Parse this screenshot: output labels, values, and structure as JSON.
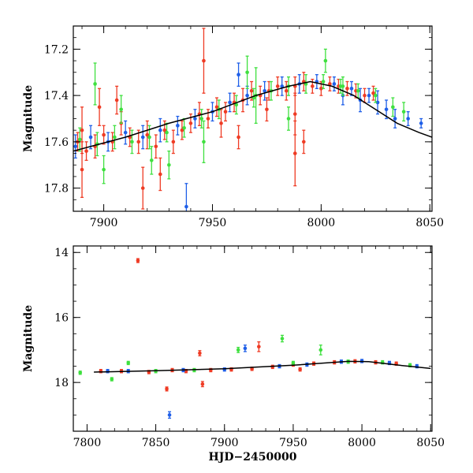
{
  "chart_data": [
    {
      "type": "scatter",
      "title": "",
      "xlabel": "",
      "ylabel": "Magnitude",
      "xlim": [
        7886,
        8051
      ],
      "ylim": [
        17.9,
        17.1
      ],
      "y_inverted": true,
      "grid": false,
      "x_ticks": [
        7900,
        7950,
        8000,
        8050
      ],
      "x_tick_labels": [
        "7900",
        "7950",
        "8000",
        "8050"
      ],
      "y_ticks": [
        17.2,
        17.4,
        17.6,
        17.8
      ],
      "y_tick_labels": [
        "17.2",
        "17.4",
        "17.6",
        "17.8"
      ],
      "series": [
        {
          "color": "#ef3b24",
          "points": [
            [
              7888,
              17.6,
              0.04
            ],
            [
              7892,
              17.64,
              0.04
            ],
            [
              7896,
              17.62,
              0.05
            ],
            [
              7900,
              17.57,
              0.04
            ],
            [
              7904,
              17.6,
              0.04
            ],
            [
              7908,
              17.52,
              0.05
            ],
            [
              7912,
              17.58,
              0.04
            ],
            [
              7916,
              17.6,
              0.05
            ],
            [
              7920,
              17.57,
              0.06
            ],
            [
              7924,
              17.62,
              0.05
            ],
            [
              7928,
              17.55,
              0.04
            ],
            [
              7932,
              17.6,
              0.05
            ],
            [
              7936,
              17.55,
              0.04
            ],
            [
              7940,
              17.52,
              0.04
            ],
            [
              7944,
              17.48,
              0.05
            ],
            [
              7948,
              17.5,
              0.04
            ],
            [
              7952,
              17.45,
              0.04
            ],
            [
              7956,
              17.47,
              0.04
            ],
            [
              7960,
              17.43,
              0.04
            ],
            [
              7964,
              17.42,
              0.05
            ],
            [
              7968,
              17.38,
              0.04
            ],
            [
              7972,
              17.4,
              0.04
            ],
            [
              7976,
              17.38,
              0.04
            ],
            [
              7980,
              17.36,
              0.04
            ],
            [
              7984,
              17.38,
              0.04
            ],
            [
              7988,
              17.36,
              0.04
            ],
            [
              7992,
              17.34,
              0.04
            ],
            [
              7996,
              17.36,
              0.03
            ],
            [
              8000,
              17.37,
              0.03
            ],
            [
              8004,
              17.35,
              0.03
            ],
            [
              8008,
              17.36,
              0.03
            ],
            [
              8012,
              17.37,
              0.03
            ],
            [
              8016,
              17.38,
              0.03
            ],
            [
              8020,
              17.4,
              0.03
            ],
            [
              8024,
              17.39,
              0.03
            ],
            [
              7890,
              17.55,
              0.1
            ],
            [
              7890,
              17.72,
              0.12
            ],
            [
              7898,
              17.45,
              0.08
            ],
            [
              7906,
              17.42,
              0.06
            ],
            [
              7918,
              17.8,
              0.09
            ],
            [
              7926,
              17.74,
              0.07
            ],
            [
              7946,
              17.25,
              0.14
            ],
            [
              7954,
              17.52,
              0.06
            ],
            [
              7962,
              17.58,
              0.05
            ],
            [
              7975,
              17.46,
              0.05
            ],
            [
              7988,
              17.48,
              0.09
            ],
            [
              7988,
              17.65,
              0.14
            ],
            [
              7992,
              17.6,
              0.05
            ]
          ]
        },
        {
          "color": "#1f5fe8",
          "points": [
            [
              7887,
              17.62,
              0.05
            ],
            [
              7894,
              17.58,
              0.05
            ],
            [
              7902,
              17.6,
              0.04
            ],
            [
              7910,
              17.56,
              0.05
            ],
            [
              7918,
              17.58,
              0.05
            ],
            [
              7926,
              17.55,
              0.05
            ],
            [
              7934,
              17.53,
              0.04
            ],
            [
              7942,
              17.5,
              0.04
            ],
            [
              7950,
              17.47,
              0.04
            ],
            [
              7958,
              17.43,
              0.04
            ],
            [
              7966,
              17.4,
              0.04
            ],
            [
              7974,
              17.38,
              0.04
            ],
            [
              7982,
              17.36,
              0.04
            ],
            [
              7990,
              17.35,
              0.04
            ],
            [
              7998,
              17.34,
              0.03
            ],
            [
              8006,
              17.35,
              0.03
            ],
            [
              8014,
              17.37,
              0.03
            ],
            [
              8022,
              17.4,
              0.03
            ],
            [
              8030,
              17.46,
              0.04
            ],
            [
              8034,
              17.5,
              0.04
            ],
            [
              8040,
              17.5,
              0.03
            ],
            [
              8046,
              17.52,
              0.02
            ],
            [
              7938,
              17.88,
              0.1
            ],
            [
              7962,
              17.31,
              0.05
            ],
            [
              8010,
              17.4,
              0.04
            ],
            [
              8018,
              17.42,
              0.05
            ],
            [
              8026,
              17.43,
              0.05
            ]
          ]
        },
        {
          "color": "#3fe03f",
          "points": [
            [
              7889,
              17.59,
              0.05
            ],
            [
              7897,
              17.61,
              0.05
            ],
            [
              7905,
              17.58,
              0.05
            ],
            [
              7913,
              17.6,
              0.05
            ],
            [
              7921,
              17.58,
              0.05
            ],
            [
              7929,
              17.56,
              0.04
            ],
            [
              7937,
              17.54,
              0.04
            ],
            [
              7945,
              17.5,
              0.04
            ],
            [
              7953,
              17.46,
              0.04
            ],
            [
              7961,
              17.44,
              0.04
            ],
            [
              7969,
              17.41,
              0.04
            ],
            [
              7977,
              17.38,
              0.04
            ],
            [
              7985,
              17.36,
              0.04
            ],
            [
              7993,
              17.35,
              0.04
            ],
            [
              8001,
              17.34,
              0.03
            ],
            [
              8009,
              17.36,
              0.03
            ],
            [
              8017,
              17.38,
              0.03
            ],
            [
              8025,
              17.4,
              0.03
            ],
            [
              8033,
              17.45,
              0.04
            ],
            [
              8038,
              17.47,
              0.04
            ],
            [
              7896,
              17.35,
              0.09
            ],
            [
              7900,
              17.72,
              0.06
            ],
            [
              7908,
              17.46,
              0.06
            ],
            [
              7922,
              17.68,
              0.06
            ],
            [
              7930,
              17.7,
              0.06
            ],
            [
              7946,
              17.6,
              0.09
            ],
            [
              7966,
              17.3,
              0.07
            ],
            [
              7970,
              17.4,
              0.12
            ],
            [
              7985,
              17.5,
              0.05
            ],
            [
              8002,
              17.25,
              0.05
            ],
            [
              8010,
              17.36,
              0.04
            ]
          ]
        }
      ],
      "model_curve": {
        "color": "#000000",
        "points": [
          [
            7886,
            17.64
          ],
          [
            7910,
            17.58
          ],
          [
            7930,
            17.52
          ],
          [
            7950,
            17.47
          ],
          [
            7970,
            17.4
          ],
          [
            7985,
            17.36
          ],
          [
            7995,
            17.34
          ],
          [
            8005,
            17.36
          ],
          [
            8015,
            17.4
          ],
          [
            8025,
            17.46
          ],
          [
            8035,
            17.52
          ],
          [
            8045,
            17.56
          ],
          [
            8051,
            17.58
          ]
        ]
      }
    },
    {
      "type": "scatter",
      "title": "",
      "xlabel": "HJD−2450000",
      "ylabel": "Magnitude",
      "xlim": [
        7790,
        8051
      ],
      "ylim": [
        19.5,
        13.8
      ],
      "y_inverted": true,
      "grid": false,
      "x_ticks": [
        7800,
        7850,
        7900,
        7950,
        8000,
        8050
      ],
      "x_tick_labels": [
        "7800",
        "7850",
        "7900",
        "7950",
        "8000",
        "8050"
      ],
      "y_ticks": [
        14,
        16,
        18
      ],
      "y_tick_labels": [
        "14",
        "16",
        "18"
      ],
      "series": [
        {
          "color": "#ef3b24",
          "points": [
            [
              7810,
              17.65,
              0.05
            ],
            [
              7825,
              17.65,
              0.05
            ],
            [
              7837,
              14.25,
              0.06
            ],
            [
              7845,
              17.68,
              0.05
            ],
            [
              7858,
              18.2,
              0.06
            ],
            [
              7862,
              17.62,
              0.05
            ],
            [
              7872,
              17.65,
              0.05
            ],
            [
              7882,
              17.1,
              0.08
            ],
            [
              7884,
              18.05,
              0.08
            ],
            [
              7890,
              17.62,
              0.05
            ],
            [
              7905,
              17.6,
              0.05
            ],
            [
              7920,
              17.58,
              0.05
            ],
            [
              7925,
              16.9,
              0.15
            ],
            [
              7935,
              17.52,
              0.05
            ],
            [
              7950,
              17.45,
              0.05
            ],
            [
              7955,
              17.6,
              0.05
            ],
            [
              7965,
              17.42,
              0.05
            ],
            [
              7980,
              17.38,
              0.05
            ],
            [
              7995,
              17.35,
              0.05
            ],
            [
              8010,
              17.38,
              0.05
            ],
            [
              8025,
              17.42,
              0.05
            ]
          ]
        },
        {
          "color": "#1f5fe8",
          "points": [
            [
              7815,
              17.65,
              0.05
            ],
            [
              7830,
              17.65,
              0.05
            ],
            [
              7860,
              19.0,
              0.1
            ],
            [
              7870,
              17.62,
              0.05
            ],
            [
              7900,
              17.6,
              0.05
            ],
            [
              7915,
              16.95,
              0.1
            ],
            [
              7940,
              17.5,
              0.05
            ],
            [
              7960,
              17.45,
              0.05
            ],
            [
              7985,
              17.36,
              0.05
            ],
            [
              8000,
              17.34,
              0.05
            ],
            [
              8020,
              17.4,
              0.05
            ],
            [
              8040,
              17.5,
              0.05
            ]
          ]
        },
        {
          "color": "#3fe03f",
          "points": [
            [
              7795,
              17.7,
              0.05
            ],
            [
              7818,
              17.9,
              0.05
            ],
            [
              7830,
              17.4,
              0.05
            ],
            [
              7850,
              17.65,
              0.05
            ],
            [
              7878,
              17.62,
              0.05
            ],
            [
              7910,
              17.0,
              0.08
            ],
            [
              7942,
              16.65,
              0.1
            ],
            [
              7950,
              17.4,
              0.05
            ],
            [
              7970,
              17.0,
              0.15
            ],
            [
              7990,
              17.36,
              0.05
            ],
            [
              8015,
              17.38,
              0.05
            ],
            [
              8035,
              17.47,
              0.05
            ]
          ]
        }
      ],
      "model_curve": {
        "color": "#000000",
        "points": [
          [
            7805,
            17.68
          ],
          [
            7850,
            17.64
          ],
          [
            7900,
            17.58
          ],
          [
            7950,
            17.47
          ],
          [
            7990,
            17.35
          ],
          [
            8005,
            17.36
          ],
          [
            8025,
            17.46
          ],
          [
            8050,
            17.57
          ]
        ]
      }
    }
  ]
}
